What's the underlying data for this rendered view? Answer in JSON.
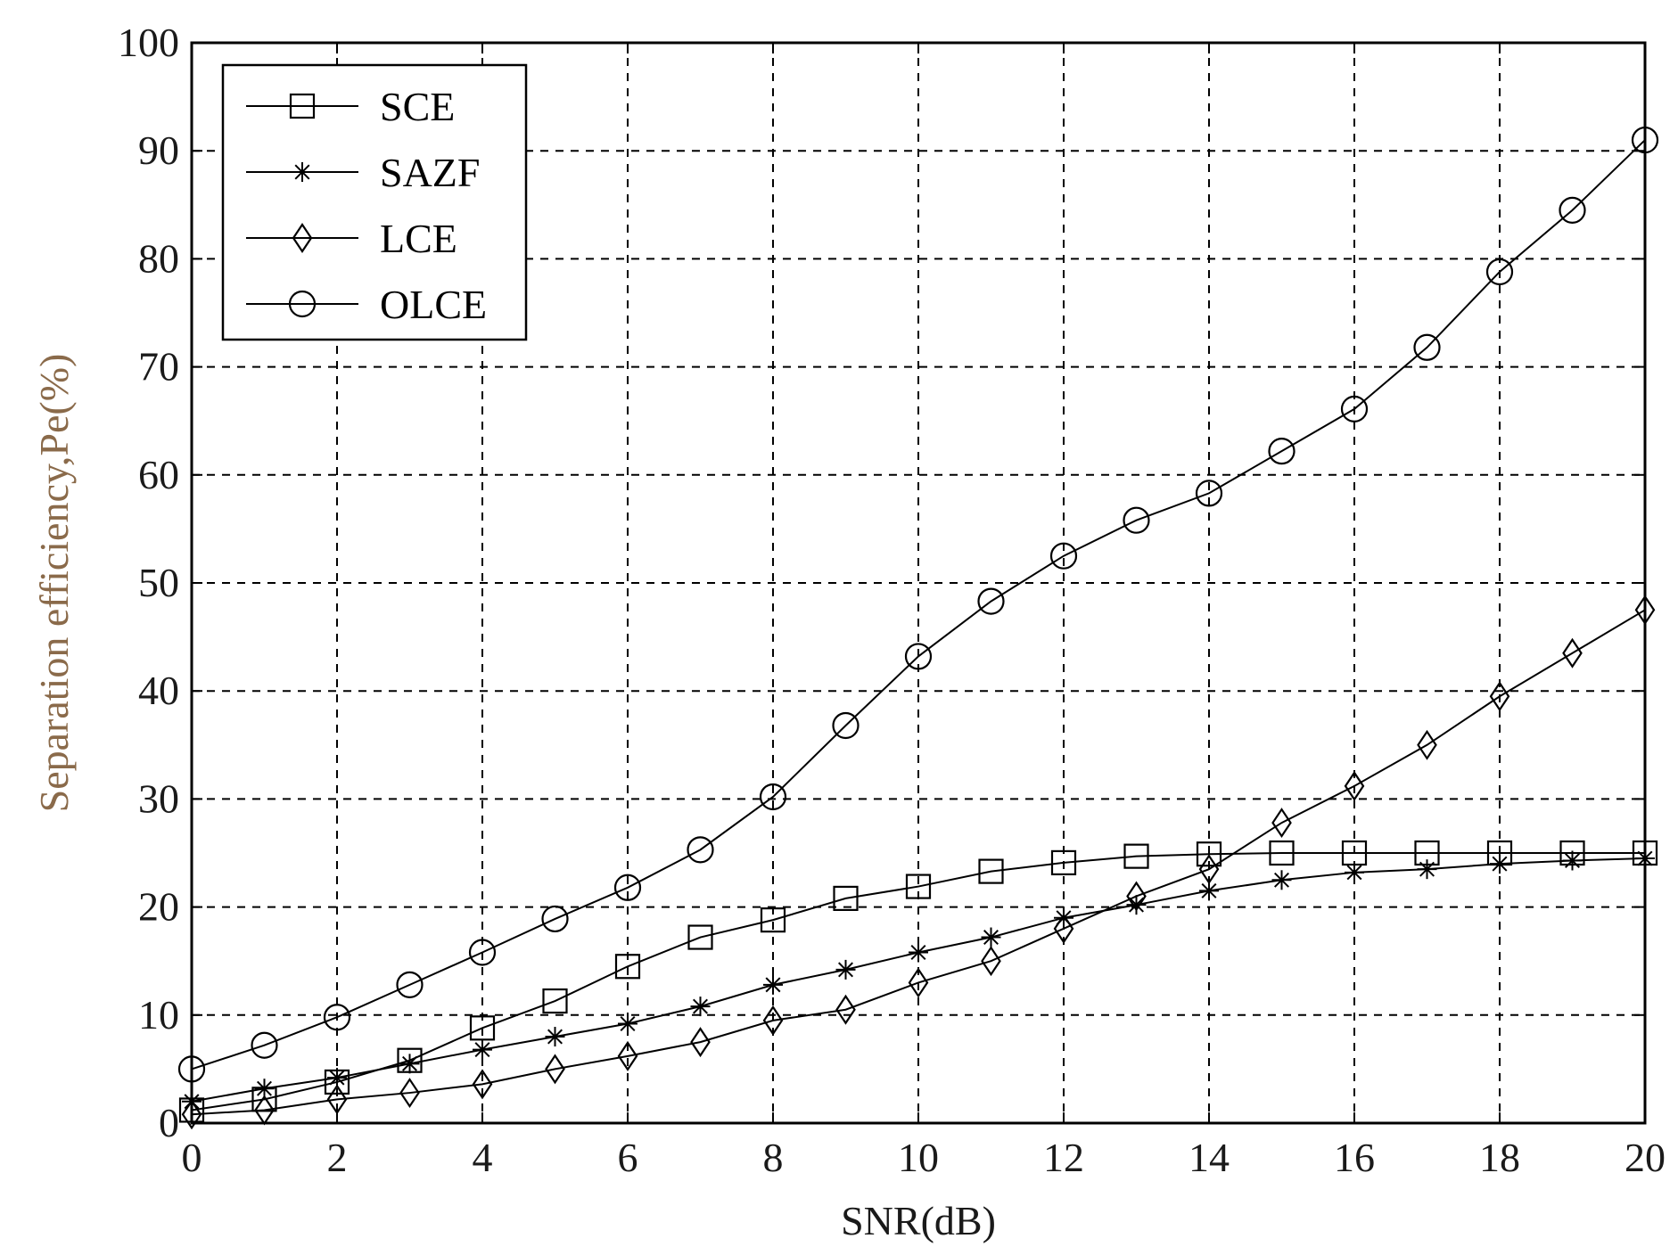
{
  "chart_data": {
    "type": "line",
    "xlabel": "SNR(dB)",
    "ylabel": "Separation efficiency,Pe(%)",
    "xlim": [
      0,
      20
    ],
    "ylim": [
      0,
      100
    ],
    "xticks": [
      0,
      2,
      4,
      6,
      8,
      10,
      12,
      14,
      16,
      18,
      20
    ],
    "yticks": [
      0,
      10,
      20,
      30,
      40,
      50,
      60,
      70,
      80,
      90,
      100
    ],
    "grid": true,
    "legend_position": "top-left",
    "x": [
      0,
      1,
      2,
      3,
      4,
      5,
      6,
      7,
      8,
      9,
      10,
      11,
      12,
      13,
      14,
      15,
      16,
      17,
      18,
      19,
      20
    ],
    "series": [
      {
        "name": "SCE",
        "marker": "square",
        "values": [
          1.2,
          2.2,
          3.8,
          5.8,
          8.8,
          11.3,
          14.5,
          17.2,
          18.8,
          20.8,
          21.9,
          23.3,
          24.1,
          24.7,
          24.9,
          25.0,
          25.0,
          25.0,
          25.0,
          25.0,
          25.0
        ]
      },
      {
        "name": "SAZF",
        "marker": "star",
        "values": [
          2.0,
          3.2,
          4.2,
          5.5,
          6.8,
          8.0,
          9.2,
          10.8,
          12.8,
          14.2,
          15.8,
          17.2,
          19.0,
          20.2,
          21.5,
          22.5,
          23.2,
          23.5,
          24.0,
          24.3,
          24.5
        ]
      },
      {
        "name": "LCE",
        "marker": "diamond",
        "values": [
          0.8,
          1.2,
          2.2,
          2.8,
          3.6,
          5.0,
          6.2,
          7.5,
          9.5,
          10.5,
          13.0,
          15.0,
          18.0,
          21.0,
          23.5,
          27.8,
          31.2,
          35.0,
          39.5,
          43.5,
          47.5
        ]
      },
      {
        "name": "OLCE",
        "marker": "circle",
        "values": [
          5.0,
          7.2,
          9.8,
          12.8,
          15.8,
          18.9,
          21.8,
          25.3,
          30.2,
          36.8,
          43.2,
          48.3,
          52.5,
          55.8,
          58.3,
          62.2,
          66.1,
          71.8,
          78.8,
          84.5,
          91.0
        ]
      }
    ]
  }
}
